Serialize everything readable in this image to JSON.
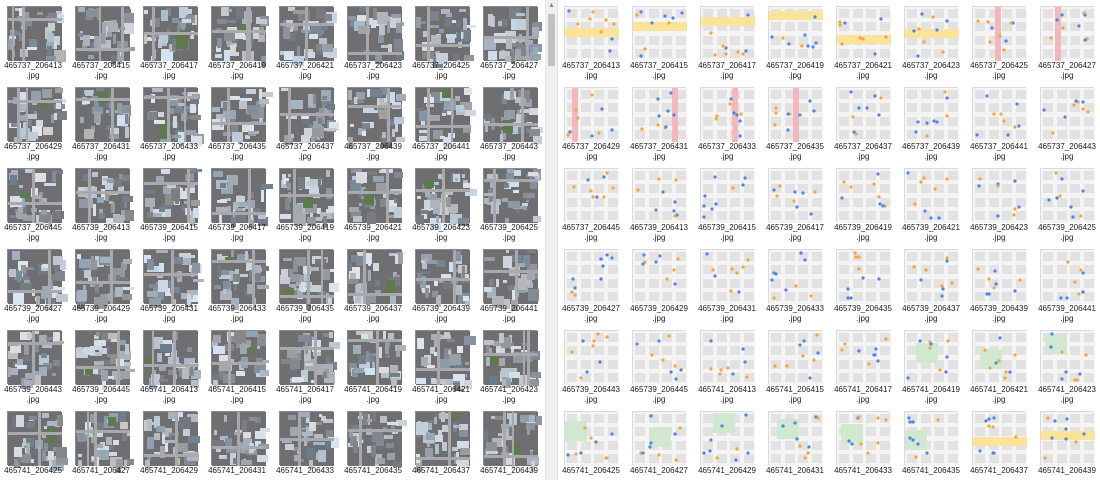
{
  "left_pane": {
    "kind": "satellite",
    "files": [
      [
        "465737_206413",
        ".jpg"
      ],
      [
        "465737_206415",
        ".jpg"
      ],
      [
        "465737_206417",
        ".jpg"
      ],
      [
        "465737_206419",
        ".jpg"
      ],
      [
        "465737_206421",
        ".jpg"
      ],
      [
        "465737_206423",
        ".jpg"
      ],
      [
        "465737_206425",
        ".jpg"
      ],
      [
        "465737_206427",
        ".jpg"
      ],
      [
        "465737_206429",
        ".jpg"
      ],
      [
        "465737_206431",
        ".jpg"
      ],
      [
        "465737_206433",
        ".jpg"
      ],
      [
        "465737_206435",
        ".jpg"
      ],
      [
        "465737_206437",
        ".jpg"
      ],
      [
        "465737_206439",
        ".jpg"
      ],
      [
        "465737_206441",
        ".jpg"
      ],
      [
        "465737_206443",
        ".jpg"
      ],
      [
        "465737_206445",
        ".jpg"
      ],
      [
        "465739_206413",
        ".jpg"
      ],
      [
        "465739_206415",
        ".jpg"
      ],
      [
        "465739_206417",
        ".jpg"
      ],
      [
        "465739_206419",
        ".jpg"
      ],
      [
        "465739_206421",
        ".jpg"
      ],
      [
        "465739_206423",
        ".jpg"
      ],
      [
        "465739_206425",
        ".jpg"
      ],
      [
        "465739_206427",
        ".jpg"
      ],
      [
        "465739_206429",
        ".jpg"
      ],
      [
        "465739_206431",
        ".jpg"
      ],
      [
        "465739_206433",
        ".jpg"
      ],
      [
        "465739_206435",
        ".jpg"
      ],
      [
        "465739_206437",
        ".jpg"
      ],
      [
        "465739_206439",
        ".jpg"
      ],
      [
        "465739_206441",
        ".jpg"
      ],
      [
        "465739_206443",
        ".jpg"
      ],
      [
        "465739_206445",
        ".jpg"
      ],
      [
        "465741_206413",
        ".jpg"
      ],
      [
        "465741_206415",
        ".jpg"
      ],
      [
        "465741_206417",
        ".jpg"
      ],
      [
        "465741_206419",
        ".jpg"
      ],
      [
        "465741_206421",
        ".jpg"
      ],
      [
        "465741_206423",
        ".jpg"
      ],
      [
        "465741_206425",
        ""
      ],
      [
        "465741_206427",
        ""
      ],
      [
        "465741_206429",
        ""
      ],
      [
        "465741_206431",
        ""
      ],
      [
        "465741_206433",
        ""
      ],
      [
        "465741_206435",
        ""
      ],
      [
        "465741_206437",
        ""
      ],
      [
        "465741_206439",
        ""
      ]
    ]
  },
  "right_pane": {
    "kind": "map",
    "files": [
      [
        "465737_206413",
        ".jpg"
      ],
      [
        "465737_206415",
        ".jpg"
      ],
      [
        "465737_206417",
        ".jpg"
      ],
      [
        "465737_206419",
        ".jpg"
      ],
      [
        "465737_206421",
        ".jpg"
      ],
      [
        "465737_206423",
        ".jpg"
      ],
      [
        "465737_206425",
        ".jpg"
      ],
      [
        "465737_206427",
        ".jpg"
      ],
      [
        "465737_206429",
        ".jpg"
      ],
      [
        "465737_206431",
        ".jpg"
      ],
      [
        "465737_206433",
        ".jpg"
      ],
      [
        "465737_206435",
        ".jpg"
      ],
      [
        "465737_206437",
        ".jpg"
      ],
      [
        "465737_206439",
        ".jpg"
      ],
      [
        "465737_206441",
        ".jpg"
      ],
      [
        "465737_206443",
        ".jpg"
      ],
      [
        "465737_206445",
        ".jpg"
      ],
      [
        "465739_206413",
        ".jpg"
      ],
      [
        "465739_206415",
        ".jpg"
      ],
      [
        "465739_206417",
        ".jpg"
      ],
      [
        "465739_206419",
        ".jpg"
      ],
      [
        "465739_206421",
        ".jpg"
      ],
      [
        "465739_206423",
        ".jpg"
      ],
      [
        "465739_206425",
        ".jpg"
      ],
      [
        "465739_206427",
        ".jpg"
      ],
      [
        "465739_206429",
        ".jpg"
      ],
      [
        "465739_206431",
        ".jpg"
      ],
      [
        "465739_206433",
        ".jpg"
      ],
      [
        "465739_206435",
        ".jpg"
      ],
      [
        "465739_206437",
        ".jpg"
      ],
      [
        "465739_206439",
        ".jpg"
      ],
      [
        "465739_206441",
        ".jpg"
      ],
      [
        "465739_206443",
        ".jpg"
      ],
      [
        "465739_206445",
        ".jpg"
      ],
      [
        "465741_206413",
        ".jpg"
      ],
      [
        "465741_206415",
        ".jpg"
      ],
      [
        "465741_206417",
        ".jpg"
      ],
      [
        "465741_206419",
        ".jpg"
      ],
      [
        "465741_206421",
        ".jpg"
      ],
      [
        "465741_206423",
        ".jpg"
      ],
      [
        "465741_206425",
        ""
      ],
      [
        "465741_206427",
        ""
      ],
      [
        "465741_206429",
        ""
      ],
      [
        "465741_206431",
        ""
      ],
      [
        "465741_206433",
        ""
      ],
      [
        "465741_206435",
        ""
      ],
      [
        "465741_206437",
        ""
      ],
      [
        "465741_206439",
        ""
      ]
    ]
  },
  "scrollbar": {
    "up_icon": "chevron-up-icon"
  },
  "colors": {
    "sat_base": "#6f6f72",
    "sat_road": "#a9a9ad",
    "sat_green": "#5d7a4e",
    "map_base": "#f4f4f4",
    "map_block": "#e2e2e2",
    "map_green": "#cfe8cf",
    "map_yellow": "#fbe39a",
    "map_pink": "#f2b8bc",
    "map_poi_blue": "#4a86e8",
    "map_poi_orange": "#f5a53b"
  }
}
